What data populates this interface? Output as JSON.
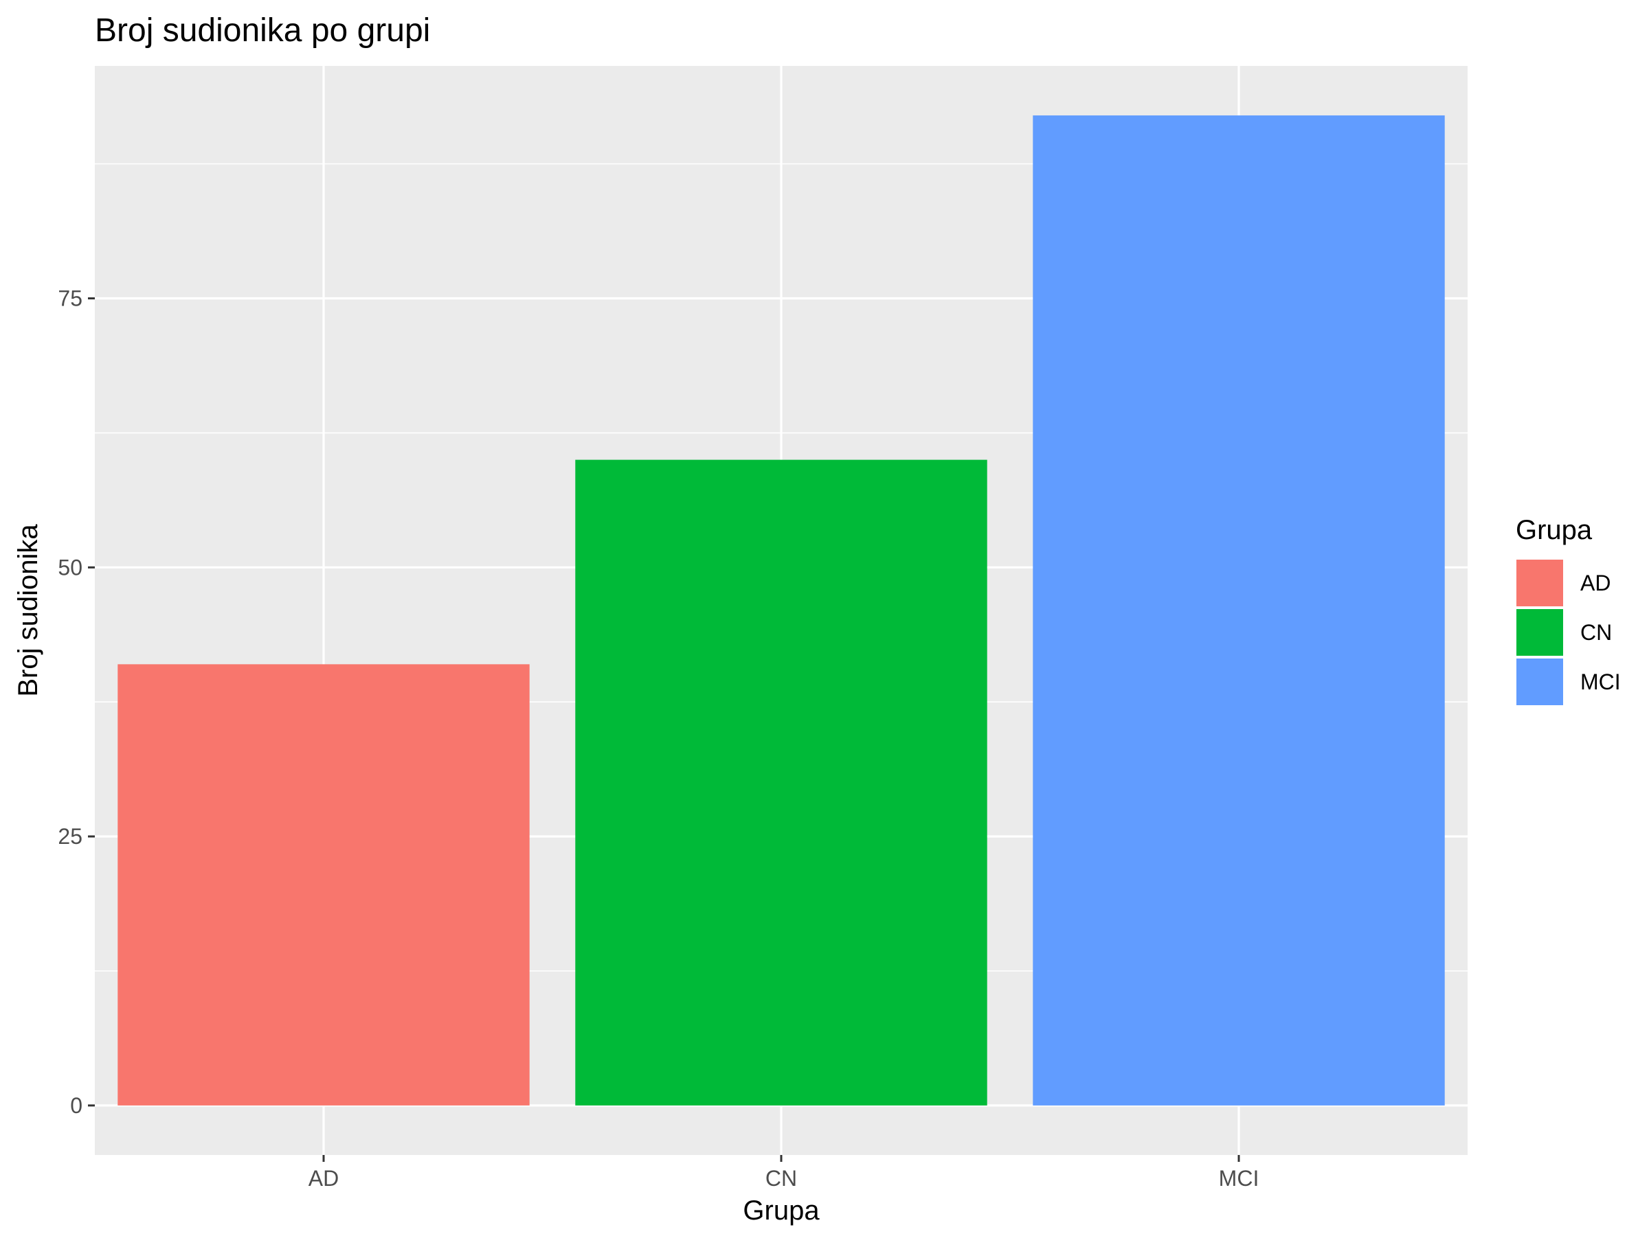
{
  "chart_data": {
    "type": "bar",
    "title": "Broj sudionika po grupi",
    "xlabel": "Grupa",
    "ylabel": "Broj sudionika",
    "categories": [
      "AD",
      "CN",
      "MCI"
    ],
    "values": [
      41,
      60,
      92
    ],
    "colors": [
      "#F8766D",
      "#00BA38",
      "#619CFF"
    ],
    "ylim": [
      -4.6,
      96.6
    ],
    "yticks": [
      0,
      25,
      50,
      75
    ],
    "yticks_minor": [
      12.5,
      37.5,
      62.5,
      87.5
    ],
    "grid": true,
    "panel_background": "#EBEBEB",
    "gridline_color": "#FFFFFF",
    "legend": {
      "title": "Grupa",
      "position": "right",
      "entries": [
        "AD",
        "CN",
        "MCI"
      ]
    }
  }
}
